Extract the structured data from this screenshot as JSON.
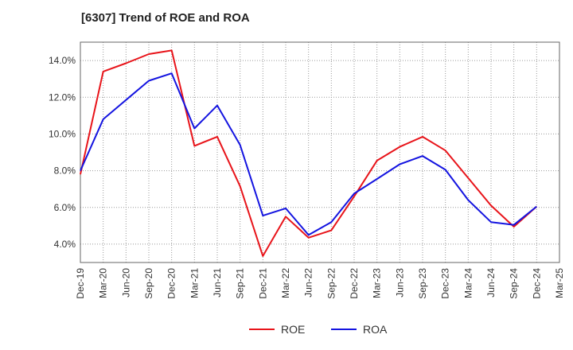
{
  "chart_data": {
    "type": "line",
    "title": "[6307]  Trend of ROE and ROA",
    "xlabel": "",
    "ylabel": "",
    "x": [
      "Dec-19",
      "Mar-20",
      "Jun-20",
      "Sep-20",
      "Dec-20",
      "Mar-21",
      "Jun-21",
      "Sep-21",
      "Dec-21",
      "Mar-22",
      "Jun-22",
      "Sep-22",
      "Dec-22",
      "Mar-23",
      "Jun-23",
      "Sep-23",
      "Dec-23",
      "Mar-24",
      "Jun-24",
      "Sep-24",
      "Dec-24",
      "Mar-25"
    ],
    "ylim": [
      3.0,
      15.0
    ],
    "yticks": [
      4.0,
      6.0,
      8.0,
      10.0,
      12.0,
      14.0
    ],
    "ytick_labels": [
      "4.0%",
      "6.0%",
      "8.0%",
      "10.0%",
      "12.0%",
      "14.0%"
    ],
    "grid": true,
    "legend_position": "bottom-center",
    "series": [
      {
        "name": "ROE",
        "color": "#e8141a",
        "values": [
          7.8,
          13.4,
          13.85,
          14.35,
          14.55,
          9.35,
          9.85,
          7.15,
          3.35,
          5.5,
          4.35,
          4.75,
          6.6,
          8.55,
          9.3,
          9.85,
          9.1,
          7.6,
          6.1,
          4.95,
          6.05,
          null
        ]
      },
      {
        "name": "ROA",
        "color": "#1414e0",
        "values": [
          8.0,
          10.8,
          11.85,
          12.9,
          13.3,
          10.3,
          11.55,
          9.4,
          5.55,
          5.95,
          4.5,
          5.2,
          6.75,
          7.55,
          8.35,
          8.8,
          8.05,
          6.4,
          5.2,
          5.05,
          6.05,
          null
        ]
      }
    ]
  }
}
